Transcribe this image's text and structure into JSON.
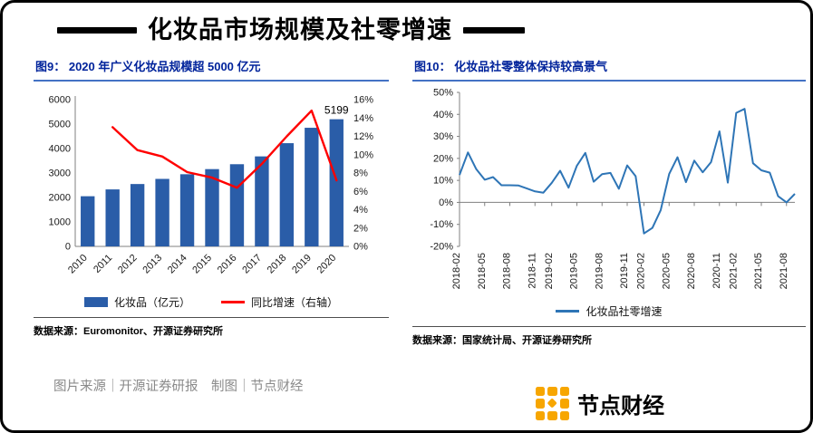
{
  "page": {
    "title": "化妆品市场规模及社零增速",
    "credit": "图片来源｜开源证券研报　制图｜节点财经",
    "brand": "节点财经"
  },
  "colors": {
    "bar": "#2A5DA8",
    "growth_line": "#FF0000",
    "retail_line": "#2E75B6",
    "panel_title_navy": "#00239B",
    "title_rule_blue": "#4472C4",
    "brand_orange": "#F7A600",
    "credit_gray": "#8A8A8A"
  },
  "chart_data": [
    {
      "type": "bar",
      "subtype": "bar+line dual axis",
      "title": "图9： 2020 年广义化妆品规模超 5000 亿元",
      "categories": [
        "2010",
        "2011",
        "2012",
        "2013",
        "2014",
        "2015",
        "2016",
        "2017",
        "2018",
        "2019",
        "2020"
      ],
      "series": [
        {
          "name": "化妆品（亿元）",
          "kind": "bar",
          "axis": "left",
          "values": [
            2051,
            2330,
            2550,
            2760,
            2950,
            3160,
            3360,
            3680,
            4220,
            4850,
            5199
          ]
        },
        {
          "name": "同比增速（右轴）",
          "kind": "line",
          "axis": "right",
          "values": [
            null,
            13.0,
            10.5,
            9.8,
            8.1,
            7.5,
            6.4,
            9.0,
            12.0,
            14.8,
            7.2
          ]
        }
      ],
      "left_axis": {
        "min": 0,
        "max": 6000,
        "tick_step": 1000,
        "suffix": ""
      },
      "right_axis": {
        "min": 0,
        "max": 16,
        "tick_step": 2,
        "suffix": "%"
      },
      "annotation": {
        "text": "5199",
        "category": "2020"
      },
      "grid": false,
      "legend_position": "bottom",
      "source": "数据来源：Euromonitor、开源证券研究所"
    },
    {
      "type": "line",
      "title": "图10： 化妆品社零整体保持较高景气",
      "x": [
        "2018-02",
        "2018-03",
        "2018-04",
        "2018-05",
        "2018-06",
        "2018-07",
        "2018-08",
        "2018-09",
        "2018-10",
        "2018-11",
        "2018-12",
        "2019-02",
        "2019-03",
        "2019-04",
        "2019-05",
        "2019-06",
        "2019-07",
        "2019-08",
        "2019-09",
        "2019-10",
        "2019-11",
        "2019-12",
        "2020-02",
        "2020-03",
        "2020-04",
        "2020-05",
        "2020-06",
        "2020-07",
        "2020-08",
        "2020-09",
        "2020-10",
        "2020-11",
        "2020-12",
        "2021-02",
        "2021-03",
        "2021-04",
        "2021-05",
        "2021-06",
        "2021-07",
        "2021-08",
        "2021-09"
      ],
      "series": [
        {
          "name": "化妆品社零增速",
          "values": [
            12.5,
            22.7,
            15.1,
            10.3,
            11.5,
            7.8,
            7.8,
            7.7,
            6.4,
            5.0,
            4.4,
            8.9,
            14.4,
            6.7,
            16.7,
            22.5,
            9.4,
            12.8,
            13.4,
            6.2,
            16.8,
            11.9,
            -14.1,
            -11.6,
            -3.5,
            12.9,
            20.5,
            9.2,
            19.0,
            13.7,
            18.3,
            32.3,
            9.0,
            40.7,
            42.5,
            17.8,
            14.6,
            13.5,
            2.8,
            0.0,
            3.9
          ]
        }
      ],
      "y_axis": {
        "min": -20,
        "max": 50,
        "tick_step": 10,
        "suffix": "%"
      },
      "x_ticks": [
        "2018-02",
        "2018-05",
        "2018-08",
        "2018-11",
        "2019-02",
        "2019-05",
        "2019-08",
        "2019-11",
        "2020-02",
        "2020-05",
        "2020-08",
        "2020-11",
        "2021-02",
        "2021-05",
        "2021-08"
      ],
      "grid": false,
      "legend_position": "bottom",
      "source": "数据来源：国家统计局、开源证券研究所"
    }
  ]
}
